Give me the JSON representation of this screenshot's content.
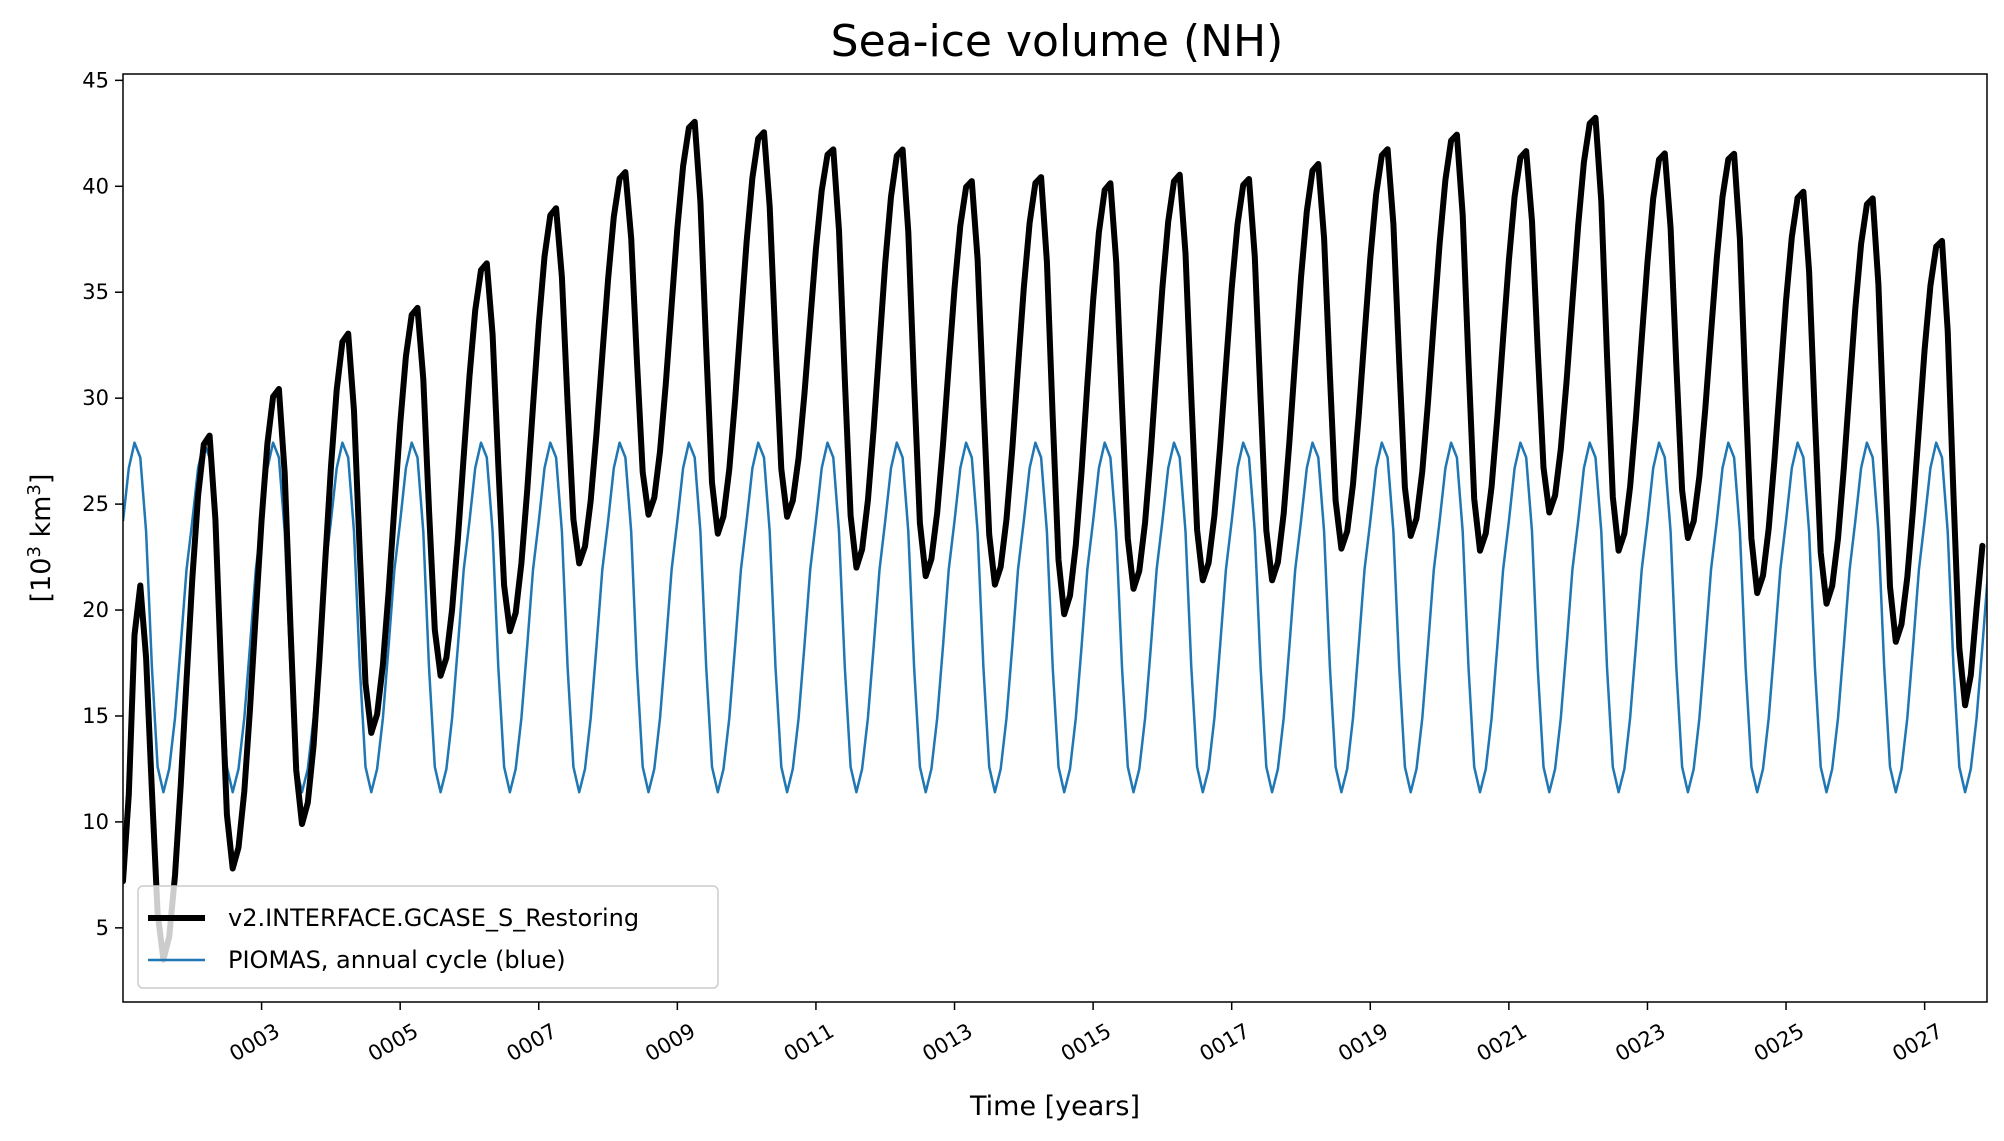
{
  "chart_data": {
    "type": "line",
    "title": "Sea-ice volume (NH)",
    "xlabel": "Time [years]",
    "ylabel": "[10³ km³]",
    "ylabel_base": "[10",
    "ylabel_unit": " km",
    "ylabel_close": "]",
    "ylabel_exp": "3",
    "xlim": [
      1,
      27.9
    ],
    "ylim": [
      1.5,
      45.3
    ],
    "yticks": [
      5,
      10,
      15,
      20,
      25,
      30,
      35,
      40,
      45
    ],
    "xticks": [
      {
        "value": 3,
        "label": "0003"
      },
      {
        "value": 5,
        "label": "0005"
      },
      {
        "value": 7,
        "label": "0007"
      },
      {
        "value": 9,
        "label": "0009"
      },
      {
        "value": 11,
        "label": "0011"
      },
      {
        "value": 13,
        "label": "0013"
      },
      {
        "value": 15,
        "label": "0015"
      },
      {
        "value": 17,
        "label": "0017"
      },
      {
        "value": 19,
        "label": "0019"
      },
      {
        "value": 21,
        "label": "0021"
      },
      {
        "value": 23,
        "label": "0023"
      },
      {
        "value": 25,
        "label": "0025"
      },
      {
        "value": 27,
        "label": "0027"
      }
    ],
    "series": [
      {
        "name": "v2.INTERFACE.GCASE_S_Restoring",
        "color": "#000000",
        "peaks": [
          21.3,
          28.4,
          30.6,
          33.2,
          34.4,
          36.5,
          39.1,
          40.8,
          43.2,
          42.7,
          41.9,
          41.9,
          40.4,
          40.6,
          40.3,
          40.7,
          40.5,
          41.2,
          41.9,
          42.6,
          41.8,
          43.4,
          41.7,
          41.7,
          39.9,
          39.6,
          37.6
        ],
        "minima": [
          3.5,
          7.8,
          9.9,
          14.2,
          16.9,
          19.0,
          22.2,
          24.5,
          23.6,
          24.4,
          22.0,
          21.6,
          21.2,
          19.8,
          21.0,
          21.4,
          21.4,
          22.9,
          23.5,
          22.8,
          24.6,
          22.8,
          23.4,
          20.8,
          20.3,
          18.5,
          15.5
        ],
        "start_value": 7.2,
        "end_value": 23.9
      },
      {
        "name": "PIOMAS, annual cycle (blue)",
        "color": "#1f77b4",
        "monthly_climatology": [
          24.2,
          26.7,
          27.9,
          27.2,
          23.7,
          17.3,
          12.6,
          11.4,
          12.5,
          14.9,
          18.3,
          21.9
        ]
      }
    ],
    "legend": {
      "location": "lower-left",
      "entries": [
        "v2.INTERFACE.GCASE_S_Restoring",
        "PIOMAS, annual cycle (blue)"
      ]
    }
  }
}
